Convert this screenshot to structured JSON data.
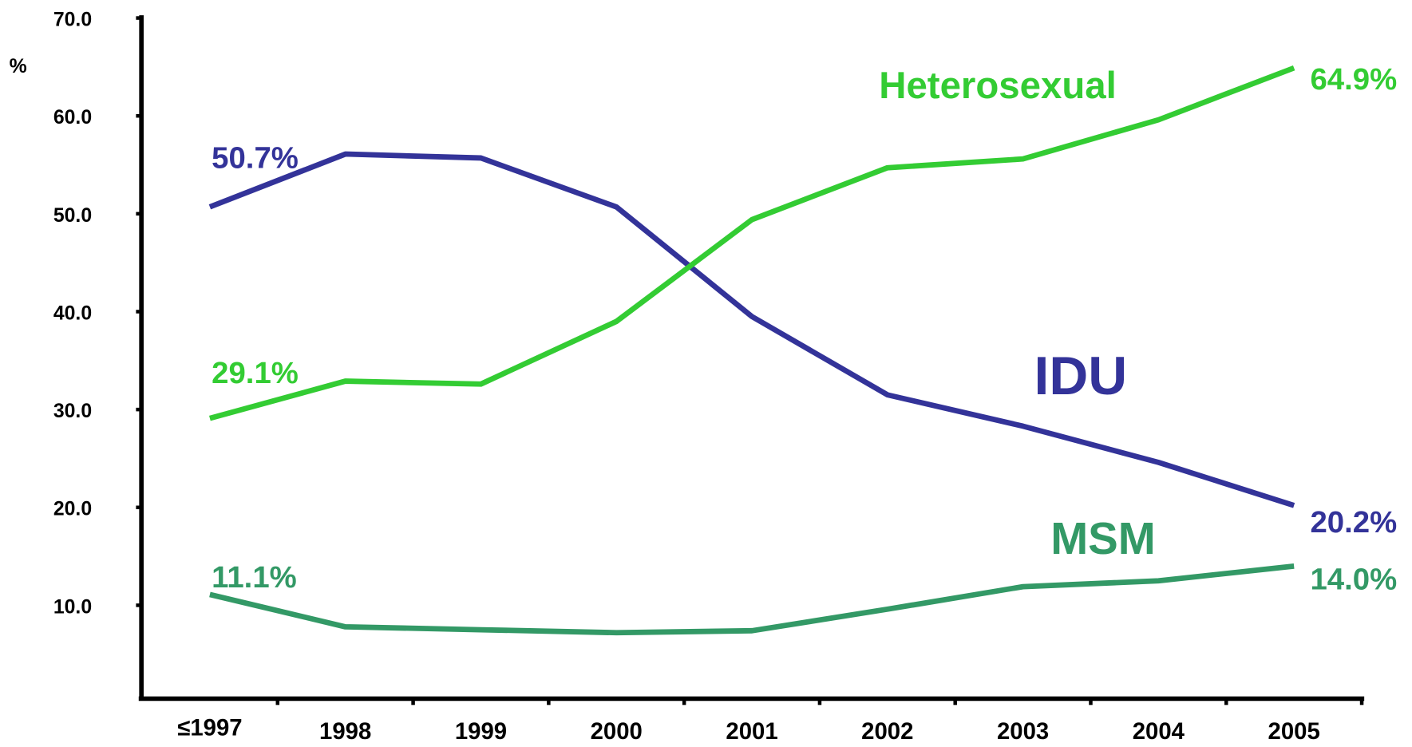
{
  "chart_data": {
    "type": "line",
    "y_label": "%",
    "categories": [
      "≤1997",
      "1998",
      "1999",
      "2000",
      "2001",
      "2002",
      "2003",
      "2004",
      "2005"
    ],
    "series": [
      {
        "name": "IDU",
        "color": "#333399",
        "values": [
          50.7,
          56.1,
          55.7,
          50.7,
          39.5,
          31.5,
          28.3,
          24.6,
          20.2
        ],
        "value_labels": [
          "50.7%",
          null,
          null,
          null,
          null,
          null,
          null,
          null,
          "20.2%"
        ]
      },
      {
        "name": "Heterosexual",
        "color": "#33cc33",
        "values": [
          29.1,
          32.9,
          32.6,
          39.0,
          49.4,
          54.7,
          55.6,
          59.6,
          64.9
        ],
        "value_labels": [
          "29.1%",
          null,
          null,
          null,
          null,
          null,
          null,
          null,
          "64.9%"
        ]
      },
      {
        "name": "MSM",
        "color": "#339966",
        "values": [
          11.1,
          7.8,
          7.5,
          7.2,
          7.4,
          9.6,
          11.9,
          12.5,
          14.0
        ],
        "value_labels": [
          "11.1%",
          null,
          null,
          null,
          null,
          null,
          null,
          null,
          "14.0%"
        ]
      }
    ],
    "ylim": [
      0,
      70
    ],
    "yticks": [
      {
        "value": 10,
        "label": "10.0"
      },
      {
        "value": 20,
        "label": "20.0"
      },
      {
        "value": 30,
        "label": "30.0"
      },
      {
        "value": 40,
        "label": "40.0"
      },
      {
        "value": 50,
        "label": "50.0"
      },
      {
        "value": 60,
        "label": "60.0"
      },
      {
        "value": 70,
        "label": "70.0"
      }
    ],
    "grid": false,
    "legend": "inline"
  }
}
